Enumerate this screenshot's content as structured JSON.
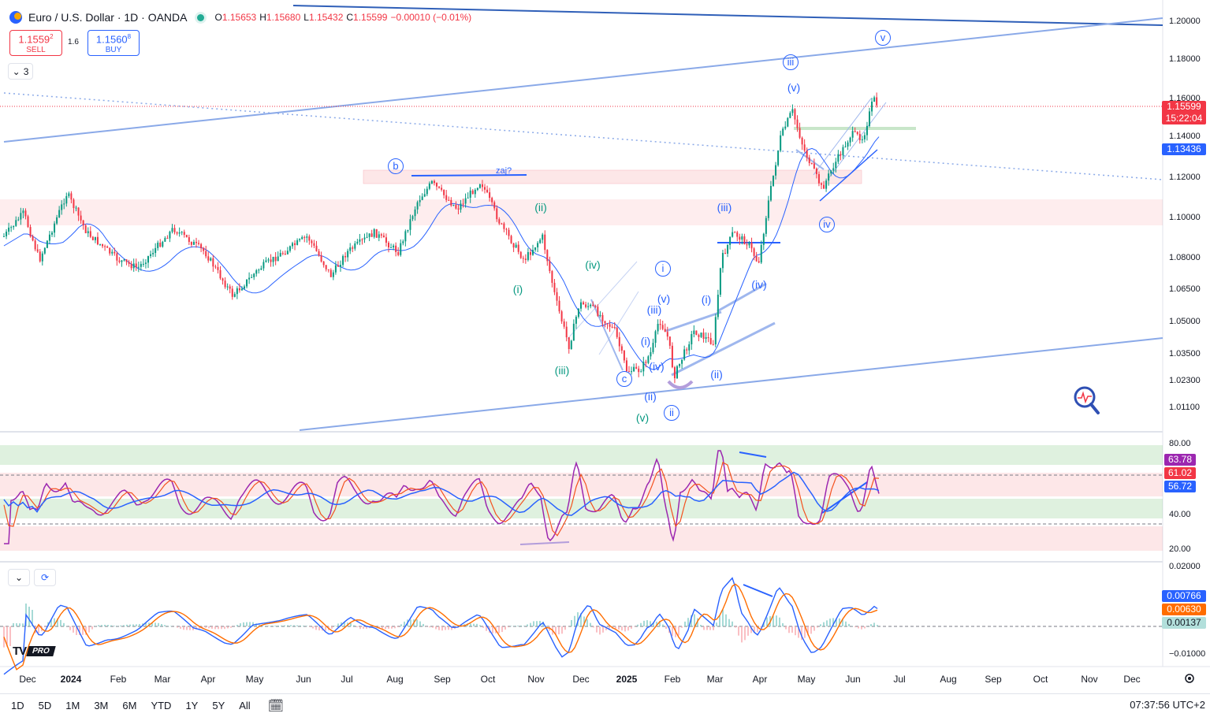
{
  "header": {
    "symbol_title": "Euro / U.S. Dollar · 1D · OANDA",
    "ohlc": [
      {
        "k": "O",
        "v": "1.15653"
      },
      {
        "k": "H",
        "v": "1.15680"
      },
      {
        "k": "L",
        "v": "1.15432"
      },
      {
        "k": "C",
        "v": "1.15599"
      },
      {
        "k": "",
        "v": "−0.00010 (−0.01%)"
      }
    ]
  },
  "trade": {
    "sell_price": "1.1559",
    "sell_price_sup": "2",
    "sell_label": "SELL",
    "spread": "1.6",
    "buy_price": "1.1560",
    "buy_price_sup": "8",
    "buy_label": "BUY",
    "indicator_count": "3"
  },
  "price_axis": {
    "ticks": [
      "1.20000",
      "1.18000",
      "1.16000",
      "1.14000",
      "1.12000",
      "1.10000",
      "1.08000",
      "1.06500",
      "1.05000",
      "1.03500",
      "1.02300",
      "1.01100"
    ],
    "current_price": "1.15599",
    "countdown": "15:22:04",
    "ma_price": "1.13436"
  },
  "rsi": {
    "ticks": [
      "80.00",
      "40.00",
      "20.00"
    ],
    "values": [
      {
        "v": "63.78",
        "color": "#9c27b0"
      },
      {
        "v": "61.02",
        "color": "#f23645"
      },
      {
        "v": "56.72",
        "color": "#2962ff"
      }
    ]
  },
  "macd": {
    "ticks": [
      "0.02000",
      "−0.01000"
    ],
    "values": [
      {
        "v": "0.00766",
        "color": "#2962ff",
        "text": "#ffffff"
      },
      {
        "v": "0.00630",
        "color": "#ff6d00",
        "text": "#ffffff"
      },
      {
        "v": "0.00137",
        "color": "#b2dfdb",
        "text": "#131722"
      }
    ]
  },
  "time_axis": [
    "Dec",
    "2024",
    "Feb",
    "Mar",
    "Apr",
    "May",
    "Jun",
    "Jul",
    "Aug",
    "Sep",
    "Oct",
    "Nov",
    "Dec",
    "2025",
    "Feb",
    "Mar",
    "Apr",
    "May",
    "Jun",
    "Jul",
    "Aug",
    "Sep",
    "Oct",
    "Nov",
    "Dec"
  ],
  "annotations": {
    "zaj": "zaj?",
    "waves": [
      {
        "t": "b",
        "c": "#2962ff",
        "circle": true
      },
      {
        "t": "(ii)",
        "c": "#089981"
      },
      {
        "t": "(i)",
        "c": "#089981"
      },
      {
        "t": "(iv)",
        "c": "#089981"
      },
      {
        "t": "(iii)",
        "c": "#089981"
      },
      {
        "t": "c",
        "c": "#2962ff",
        "circle": true
      },
      {
        "t": "(v)",
        "c": "#089981"
      },
      {
        "t": "i",
        "c": "#2962ff",
        "circle": true
      },
      {
        "t": "(v)",
        "c": "#2962ff"
      },
      {
        "t": "(iii)",
        "c": "#2962ff"
      },
      {
        "t": "(i)",
        "c": "#2962ff"
      },
      {
        "t": "(iv)",
        "c": "#2962ff"
      },
      {
        "t": "(ii)",
        "c": "#2962ff"
      },
      {
        "t": "ii",
        "c": "#2962ff",
        "circle": true
      },
      {
        "t": "(i)",
        "c": "#2962ff"
      },
      {
        "t": "(ii)",
        "c": "#2962ff"
      },
      {
        "t": "(iii)",
        "c": "#2962ff"
      },
      {
        "t": "(iv)",
        "c": "#2962ff"
      },
      {
        "t": "iii",
        "c": "#2962ff",
        "circle": true
      },
      {
        "t": "(v)",
        "c": "#2962ff"
      },
      {
        "t": "iv",
        "c": "#2962ff",
        "circle": true
      },
      {
        "t": "v",
        "c": "#2962ff",
        "circle": true
      }
    ]
  },
  "timeframes": [
    "1D",
    "5D",
    "1M",
    "3M",
    "6M",
    "YTD",
    "1Y",
    "5Y",
    "All"
  ],
  "clock": "07:37:56 UTC+2",
  "logo": {
    "mark": "TV",
    "pro": "PRO"
  },
  "colors": {
    "up": "#089981",
    "down": "#f23645",
    "accent": "#2962ff"
  }
}
